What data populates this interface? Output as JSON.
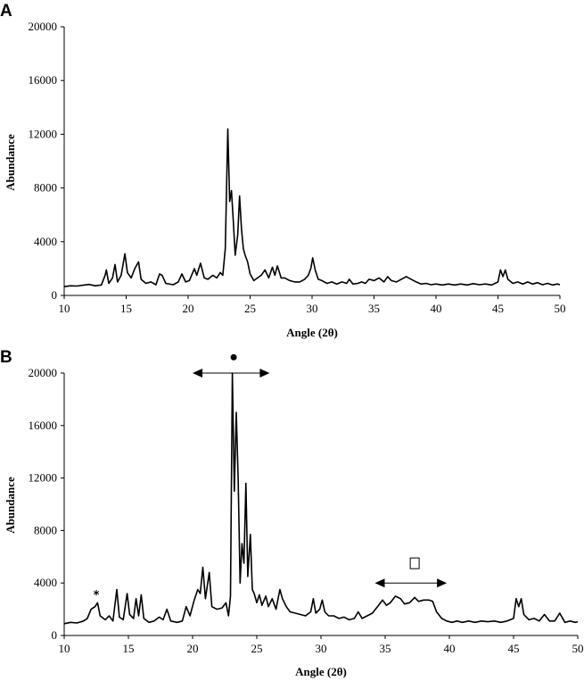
{
  "chart_data": [
    {
      "type": "line",
      "panel_label": "A",
      "xlabel": "Angle (2θ)",
      "ylabel": "Abundance",
      "xlim": [
        10,
        50
      ],
      "ylim": [
        0,
        20000
      ],
      "xticks": [
        10,
        15,
        20,
        25,
        30,
        35,
        40,
        45,
        50
      ],
      "yticks": [
        0,
        4000,
        8000,
        12000,
        16000,
        20000
      ],
      "series": [
        {
          "values": [
            [
              10,
              650
            ],
            [
              10.5,
              720
            ],
            [
              11,
              700
            ],
            [
              11.5,
              760
            ],
            [
              12,
              820
            ],
            [
              12.5,
              720
            ],
            [
              13,
              780
            ],
            [
              13.3,
              1500
            ],
            [
              13.4,
              1900
            ],
            [
              13.6,
              900
            ],
            [
              13.9,
              1300
            ],
            [
              14.1,
              2300
            ],
            [
              14.3,
              1000
            ],
            [
              14.6,
              1500
            ],
            [
              14.9,
              3100
            ],
            [
              15.1,
              1700
            ],
            [
              15.4,
              1300
            ],
            [
              15.7,
              2000
            ],
            [
              16,
              2500
            ],
            [
              16.2,
              1200
            ],
            [
              16.6,
              900
            ],
            [
              17,
              1000
            ],
            [
              17.4,
              800
            ],
            [
              17.7,
              1600
            ],
            [
              17.9,
              1500
            ],
            [
              18.2,
              900
            ],
            [
              18.8,
              800
            ],
            [
              19.2,
              1000
            ],
            [
              19.5,
              1600
            ],
            [
              19.8,
              1000
            ],
            [
              20.1,
              1100
            ],
            [
              20.5,
              2000
            ],
            [
              20.7,
              1500
            ],
            [
              21,
              2400
            ],
            [
              21.3,
              1300
            ],
            [
              21.6,
              1200
            ],
            [
              22,
              1500
            ],
            [
              22.3,
              1300
            ],
            [
              22.6,
              1700
            ],
            [
              22.8,
              1500
            ],
            [
              23,
              3500
            ],
            [
              23.2,
              12400
            ],
            [
              23.35,
              7000
            ],
            [
              23.5,
              7800
            ],
            [
              23.65,
              5500
            ],
            [
              23.8,
              3000
            ],
            [
              24,
              4500
            ],
            [
              24.15,
              7400
            ],
            [
              24.3,
              5000
            ],
            [
              24.45,
              3500
            ],
            [
              24.6,
              3000
            ],
            [
              24.8,
              2500
            ],
            [
              25,
              1600
            ],
            [
              25.3,
              1100
            ],
            [
              25.6,
              1300
            ],
            [
              25.9,
              1500
            ],
            [
              26.2,
              1900
            ],
            [
              26.5,
              1300
            ],
            [
              26.8,
              2100
            ],
            [
              27,
              1500
            ],
            [
              27.2,
              2200
            ],
            [
              27.5,
              1300
            ],
            [
              27.8,
              1300
            ],
            [
              28.2,
              1100
            ],
            [
              28.6,
              1000
            ],
            [
              29,
              1000
            ],
            [
              29.4,
              1200
            ],
            [
              29.7,
              1500
            ],
            [
              29.9,
              2000
            ],
            [
              30.05,
              2800
            ],
            [
              30.25,
              1900
            ],
            [
              30.5,
              1200
            ],
            [
              30.8,
              1100
            ],
            [
              31.2,
              900
            ],
            [
              31.6,
              1000
            ],
            [
              32,
              850
            ],
            [
              32.4,
              1000
            ],
            [
              32.8,
              900
            ],
            [
              33,
              1200
            ],
            [
              33.3,
              850
            ],
            [
              33.7,
              900
            ],
            [
              34,
              1000
            ],
            [
              34.3,
              900
            ],
            [
              34.6,
              1200
            ],
            [
              35,
              1100
            ],
            [
              35.4,
              1300
            ],
            [
              35.8,
              1000
            ],
            [
              36.1,
              1400
            ],
            [
              36.4,
              1100
            ],
            [
              36.8,
              1000
            ],
            [
              37.2,
              1200
            ],
            [
              37.6,
              1400
            ],
            [
              38,
              1200
            ],
            [
              38.4,
              1000
            ],
            [
              38.8,
              850
            ],
            [
              39.2,
              900
            ],
            [
              39.6,
              800
            ],
            [
              40,
              850
            ],
            [
              40.5,
              780
            ],
            [
              41,
              850
            ],
            [
              41.5,
              780
            ],
            [
              42,
              850
            ],
            [
              42.5,
              780
            ],
            [
              43,
              880
            ],
            [
              43.5,
              800
            ],
            [
              44,
              850
            ],
            [
              44.5,
              780
            ],
            [
              45,
              1000
            ],
            [
              45.2,
              1900
            ],
            [
              45.4,
              1400
            ],
            [
              45.6,
              1900
            ],
            [
              45.8,
              1200
            ],
            [
              46.2,
              900
            ],
            [
              46.6,
              1000
            ],
            [
              47,
              850
            ],
            [
              47.4,
              1000
            ],
            [
              47.8,
              850
            ],
            [
              48.2,
              950
            ],
            [
              48.6,
              800
            ],
            [
              49,
              900
            ],
            [
              49.4,
              780
            ],
            [
              49.8,
              850
            ],
            [
              50,
              800
            ]
          ]
        }
      ]
    },
    {
      "type": "line",
      "panel_label": "B",
      "xlabel": "Angle (2θ)",
      "ylabel": "Abundance",
      "xlim": [
        10,
        50
      ],
      "ylim": [
        0,
        20000
      ],
      "xticks": [
        10,
        15,
        20,
        25,
        30,
        35,
        40,
        45,
        50
      ],
      "yticks": [
        0,
        4000,
        8000,
        12000,
        16000,
        20000
      ],
      "annotations": [
        {
          "kind": "marker",
          "symbol": "●",
          "x": 23.2,
          "y": 21000
        },
        {
          "kind": "arrow",
          "x1": 20,
          "x2": 26,
          "y": 20000
        },
        {
          "kind": "marker",
          "symbol": "*",
          "x": 12.5,
          "y": 3200
        },
        {
          "kind": "marker",
          "symbol": "□",
          "x": 37.3,
          "y": 5500
        },
        {
          "kind": "arrow",
          "x1": 34.2,
          "x2": 39.8,
          "y": 4000
        }
      ],
      "series": [
        {
          "values": [
            [
              10,
              900
            ],
            [
              10.5,
              1000
            ],
            [
              11,
              950
            ],
            [
              11.5,
              1100
            ],
            [
              11.8,
              1300
            ],
            [
              12.1,
              2000
            ],
            [
              12.4,
              2200
            ],
            [
              12.6,
              2500
            ],
            [
              12.8,
              1500
            ],
            [
              13.2,
              1200
            ],
            [
              13.5,
              1500
            ],
            [
              13.8,
              1100
            ],
            [
              14.1,
              3500
            ],
            [
              14.3,
              1400
            ],
            [
              14.6,
              1200
            ],
            [
              14.9,
              3200
            ],
            [
              15.1,
              1600
            ],
            [
              15.4,
              1300
            ],
            [
              15.6,
              2800
            ],
            [
              15.8,
              1500
            ],
            [
              16,
              3100
            ],
            [
              16.2,
              1300
            ],
            [
              16.6,
              1000
            ],
            [
              17.0,
              1100
            ],
            [
              17.4,
              1400
            ],
            [
              17.7,
              1200
            ],
            [
              18,
              2000
            ],
            [
              18.3,
              1100
            ],
            [
              18.8,
              1000
            ],
            [
              19.2,
              1100
            ],
            [
              19.5,
              2200
            ],
            [
              19.8,
              1500
            ],
            [
              20.1,
              2600
            ],
            [
              20.4,
              3500
            ],
            [
              20.6,
              3200
            ],
            [
              20.8,
              5200
            ],
            [
              21,
              2800
            ],
            [
              21.3,
              4800
            ],
            [
              21.5,
              2200
            ],
            [
              21.9,
              2000
            ],
            [
              22.3,
              2100
            ],
            [
              22.6,
              2500
            ],
            [
              22.8,
              1500
            ],
            [
              22.95,
              3000
            ],
            [
              23.1,
              20000
            ],
            [
              23.25,
              11000
            ],
            [
              23.4,
              17000
            ],
            [
              23.55,
              12000
            ],
            [
              23.7,
              4000
            ],
            [
              23.85,
              7000
            ],
            [
              24.0,
              5500
            ],
            [
              24.15,
              11600
            ],
            [
              24.3,
              4500
            ],
            [
              24.5,
              7700
            ],
            [
              24.65,
              3500
            ],
            [
              24.8,
              3200
            ],
            [
              25,
              2500
            ],
            [
              25.2,
              3100
            ],
            [
              25.4,
              2300
            ],
            [
              25.7,
              3000
            ],
            [
              25.9,
              2200
            ],
            [
              26.2,
              2800
            ],
            [
              26.5,
              2000
            ],
            [
              26.8,
              3500
            ],
            [
              27,
              2800
            ],
            [
              27.3,
              2200
            ],
            [
              27.6,
              1800
            ],
            [
              28,
              1700
            ],
            [
              28.4,
              1600
            ],
            [
              28.8,
              1500
            ],
            [
              29.2,
              1800
            ],
            [
              29.4,
              2800
            ],
            [
              29.6,
              1700
            ],
            [
              29.9,
              2000
            ],
            [
              30.1,
              2700
            ],
            [
              30.3,
              1800
            ],
            [
              30.6,
              1500
            ],
            [
              31,
              1500
            ],
            [
              31.4,
              1300
            ],
            [
              31.8,
              1400
            ],
            [
              32.2,
              1200
            ],
            [
              32.6,
              1300
            ],
            [
              32.9,
              1800
            ],
            [
              33.2,
              1300
            ],
            [
              33.6,
              1500
            ],
            [
              34,
              1700
            ],
            [
              34.4,
              2200
            ],
            [
              34.8,
              2700
            ],
            [
              35.1,
              2300
            ],
            [
              35.4,
              2500
            ],
            [
              35.8,
              3000
            ],
            [
              36.2,
              2800
            ],
            [
              36.5,
              2400
            ],
            [
              36.9,
              2500
            ],
            [
              37.3,
              2900
            ],
            [
              37.6,
              2600
            ],
            [
              38,
              2700
            ],
            [
              38.4,
              2700
            ],
            [
              38.7,
              2600
            ],
            [
              39.0,
              1800
            ],
            [
              39.4,
              1300
            ],
            [
              39.8,
              1100
            ],
            [
              40.2,
              1000
            ],
            [
              40.6,
              1100
            ],
            [
              41,
              1000
            ],
            [
              41.5,
              1100
            ],
            [
              42,
              1000
            ],
            [
              42.5,
              1100
            ],
            [
              43,
              1050
            ],
            [
              43.5,
              1100
            ],
            [
              44,
              1000
            ],
            [
              44.5,
              1100
            ],
            [
              45,
              1300
            ],
            [
              45.2,
              2800
            ],
            [
              45.4,
              2200
            ],
            [
              45.6,
              2800
            ],
            [
              45.8,
              1600
            ],
            [
              46.2,
              1200
            ],
            [
              46.6,
              1300
            ],
            [
              47,
              1100
            ],
            [
              47.4,
              1600
            ],
            [
              47.8,
              1100
            ],
            [
              48.2,
              1100
            ],
            [
              48.6,
              1700
            ],
            [
              49,
              1000
            ],
            [
              49.4,
              1100
            ],
            [
              49.8,
              1000
            ],
            [
              50,
              1050
            ]
          ]
        }
      ]
    }
  ]
}
